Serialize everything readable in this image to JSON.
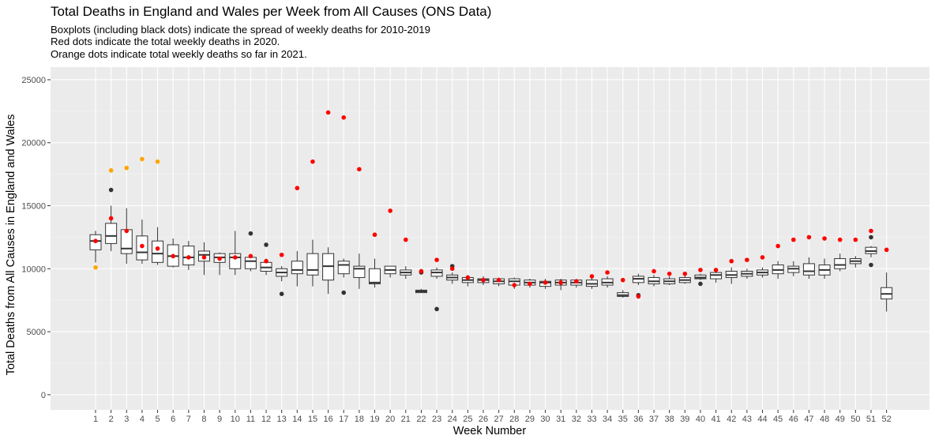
{
  "chart_data": {
    "type": "boxplot",
    "title": "Total Deaths in England and Wales per Week from All Causes (ONS Data)",
    "subtitle": [
      "Boxplots (including black dots) indicate the spread of weekly deaths for 2010-2019",
      "Red dots indicate the total weekly deaths in 2020.",
      "Orange dots indicate total weekly deaths so far in 2021."
    ],
    "xlabel": "Week Number",
    "ylabel": "Total Deaths from All Causes in England and Wales",
    "ylim": [
      -1200,
      26000
    ],
    "yticks": [
      0,
      5000,
      10000,
      15000,
      20000,
      25000
    ],
    "grid": true,
    "categories": [
      "1",
      "2",
      "3",
      "4",
      "5",
      "6",
      "7",
      "8",
      "9",
      "10",
      "11",
      "12",
      "13",
      "14",
      "15",
      "16",
      "17",
      "18",
      "19",
      "20",
      "21",
      "22",
      "23",
      "24",
      "25",
      "26",
      "27",
      "28",
      "29",
      "30",
      "31",
      "32",
      "33",
      "34",
      "35",
      "36",
      "37",
      "38",
      "39",
      "40",
      "41",
      "42",
      "43",
      "44",
      "45",
      "46",
      "47",
      "48",
      "49",
      "50",
      "51",
      "52"
    ],
    "boxes": [
      {
        "week": 1,
        "wlo": 10500,
        "q1": 11500,
        "med": 12200,
        "q3": 12700,
        "whi": 13000,
        "outliers": []
      },
      {
        "week": 2,
        "wlo": 11400,
        "q1": 12000,
        "med": 12600,
        "q3": 13600,
        "whi": 15000,
        "outliers": [
          16250
        ]
      },
      {
        "week": 3,
        "wlo": 10400,
        "q1": 11200,
        "med": 11600,
        "q3": 13100,
        "whi": 14800,
        "outliers": []
      },
      {
        "week": 4,
        "wlo": 10400,
        "q1": 10700,
        "med": 11300,
        "q3": 12600,
        "whi": 13900,
        "outliers": []
      },
      {
        "week": 5,
        "wlo": 10300,
        "q1": 10500,
        "med": 11200,
        "q3": 12200,
        "whi": 13300,
        "outliers": []
      },
      {
        "week": 6,
        "wlo": 10100,
        "q1": 10200,
        "med": 11000,
        "q3": 11900,
        "whi": 12400,
        "outliers": []
      },
      {
        "week": 7,
        "wlo": 9900,
        "q1": 10300,
        "med": 10900,
        "q3": 11800,
        "whi": 12200,
        "outliers": []
      },
      {
        "week": 8,
        "wlo": 9500,
        "q1": 10600,
        "med": 11100,
        "q3": 11400,
        "whi": 12100,
        "outliers": []
      },
      {
        "week": 9,
        "wlo": 9500,
        "q1": 10500,
        "med": 10900,
        "q3": 11200,
        "whi": 11300,
        "outliers": []
      },
      {
        "week": 10,
        "wlo": 9500,
        "q1": 10000,
        "med": 10900,
        "q3": 11200,
        "whi": 13000,
        "outliers": []
      },
      {
        "week": 11,
        "wlo": 9800,
        "q1": 10000,
        "med": 10600,
        "q3": 10900,
        "whi": 11100,
        "outliers": [
          12800
        ]
      },
      {
        "week": 12,
        "wlo": 9500,
        "q1": 9800,
        "med": 10100,
        "q3": 10500,
        "whi": 10800,
        "outliers": [
          11900
        ]
      },
      {
        "week": 13,
        "wlo": 9000,
        "q1": 9400,
        "med": 9700,
        "q3": 10000,
        "whi": 10200,
        "outliers": [
          8000
        ]
      },
      {
        "week": 14,
        "wlo": 8600,
        "q1": 9600,
        "med": 9900,
        "q3": 10600,
        "whi": 11400,
        "outliers": []
      },
      {
        "week": 15,
        "wlo": 8600,
        "q1": 9500,
        "med": 9900,
        "q3": 11200,
        "whi": 12300,
        "outliers": []
      },
      {
        "week": 16,
        "wlo": 8000,
        "q1": 9100,
        "med": 10200,
        "q3": 11200,
        "whi": 11700,
        "outliers": []
      },
      {
        "week": 17,
        "wlo": 9300,
        "q1": 9600,
        "med": 10300,
        "q3": 10600,
        "whi": 10800,
        "outliers": [
          8100
        ]
      },
      {
        "week": 18,
        "wlo": 8400,
        "q1": 9300,
        "med": 10000,
        "q3": 10200,
        "whi": 11200,
        "outliers": []
      },
      {
        "week": 19,
        "wlo": 8500,
        "q1": 8800,
        "med": 8900,
        "q3": 10000,
        "whi": 10800,
        "outliers": []
      },
      {
        "week": 20,
        "wlo": 9300,
        "q1": 9600,
        "med": 9900,
        "q3": 10200,
        "whi": 10200,
        "outliers": []
      },
      {
        "week": 21,
        "wlo": 9200,
        "q1": 9500,
        "med": 9700,
        "q3": 9900,
        "whi": 10200,
        "outliers": []
      },
      {
        "week": 22,
        "wlo": 8100,
        "q1": 8100,
        "med": 8200,
        "q3": 8300,
        "whi": 8400,
        "outliers": [
          9700
        ]
      },
      {
        "week": 23,
        "wlo": 9200,
        "q1": 9400,
        "med": 9700,
        "q3": 9900,
        "whi": 10100,
        "outliers": [
          6800
        ]
      },
      {
        "week": 24,
        "wlo": 8800,
        "q1": 9100,
        "med": 9300,
        "q3": 9500,
        "whi": 9700,
        "outliers": [
          10200
        ]
      },
      {
        "week": 25,
        "wlo": 8600,
        "q1": 8900,
        "med": 9100,
        "q3": 9300,
        "whi": 9500,
        "outliers": []
      },
      {
        "week": 26,
        "wlo": 8700,
        "q1": 8900,
        "med": 9100,
        "q3": 9200,
        "whi": 9400,
        "outliers": []
      },
      {
        "week": 27,
        "wlo": 8600,
        "q1": 8800,
        "med": 9000,
        "q3": 9200,
        "whi": 9300,
        "outliers": []
      },
      {
        "week": 28,
        "wlo": 8400,
        "q1": 8700,
        "med": 9000,
        "q3": 9200,
        "whi": 9300,
        "outliers": []
      },
      {
        "week": 29,
        "wlo": 8500,
        "q1": 8700,
        "med": 8900,
        "q3": 9100,
        "whi": 9200,
        "outliers": []
      },
      {
        "week": 30,
        "wlo": 8400,
        "q1": 8600,
        "med": 8900,
        "q3": 9000,
        "whi": 9200,
        "outliers": []
      },
      {
        "week": 31,
        "wlo": 8300,
        "q1": 8700,
        "med": 8900,
        "q3": 9100,
        "whi": 9200,
        "outliers": []
      },
      {
        "week": 32,
        "wlo": 8500,
        "q1": 8700,
        "med": 8900,
        "q3": 9100,
        "whi": 9200,
        "outliers": []
      },
      {
        "week": 33,
        "wlo": 8400,
        "q1": 8600,
        "med": 8800,
        "q3": 9100,
        "whi": 9300,
        "outliers": []
      },
      {
        "week": 34,
        "wlo": 8500,
        "q1": 8700,
        "med": 8900,
        "q3": 9200,
        "whi": 9400,
        "outliers": []
      },
      {
        "week": 35,
        "wlo": 7700,
        "q1": 7800,
        "med": 7900,
        "q3": 8100,
        "whi": 8300,
        "outliers": []
      },
      {
        "week": 36,
        "wlo": 8700,
        "q1": 8900,
        "med": 9200,
        "q3": 9400,
        "whi": 9600,
        "outliers": [
          7900
        ]
      },
      {
        "week": 37,
        "wlo": 8600,
        "q1": 8800,
        "med": 9000,
        "q3": 9300,
        "whi": 9500,
        "outliers": []
      },
      {
        "week": 38,
        "wlo": 8700,
        "q1": 8800,
        "med": 9000,
        "q3": 9200,
        "whi": 9400,
        "outliers": []
      },
      {
        "week": 39,
        "wlo": 8800,
        "q1": 8900,
        "med": 9100,
        "q3": 9300,
        "whi": 9500,
        "outliers": []
      },
      {
        "week": 40,
        "wlo": 9100,
        "q1": 9200,
        "med": 9300,
        "q3": 9500,
        "whi": 9600,
        "outliers": [
          8800
        ]
      },
      {
        "week": 41,
        "wlo": 8900,
        "q1": 9200,
        "med": 9500,
        "q3": 9700,
        "whi": 10000,
        "outliers": []
      },
      {
        "week": 42,
        "wlo": 8800,
        "q1": 9300,
        "med": 9500,
        "q3": 9800,
        "whi": 10100,
        "outliers": []
      },
      {
        "week": 43,
        "wlo": 9200,
        "q1": 9400,
        "med": 9600,
        "q3": 9800,
        "whi": 10000,
        "outliers": []
      },
      {
        "week": 44,
        "wlo": 9300,
        "q1": 9500,
        "med": 9700,
        "q3": 9900,
        "whi": 10100,
        "outliers": []
      },
      {
        "week": 45,
        "wlo": 9200,
        "q1": 9600,
        "med": 9900,
        "q3": 10300,
        "whi": 10600,
        "outliers": []
      },
      {
        "week": 46,
        "wlo": 9400,
        "q1": 9700,
        "med": 10000,
        "q3": 10200,
        "whi": 10600,
        "outliers": []
      },
      {
        "week": 47,
        "wlo": 9200,
        "q1": 9500,
        "med": 9800,
        "q3": 10400,
        "whi": 10900,
        "outliers": []
      },
      {
        "week": 48,
        "wlo": 9200,
        "q1": 9500,
        "med": 9900,
        "q3": 10300,
        "whi": 10800,
        "outliers": []
      },
      {
        "week": 49,
        "wlo": 9800,
        "q1": 10000,
        "med": 10300,
        "q3": 10800,
        "whi": 11200,
        "outliers": []
      },
      {
        "week": 50,
        "wlo": 10100,
        "q1": 10400,
        "med": 10600,
        "q3": 10800,
        "whi": 11000,
        "outliers": []
      },
      {
        "week": 51,
        "wlo": 10900,
        "q1": 11200,
        "med": 11400,
        "q3": 11700,
        "whi": 11800,
        "outliers": [
          12500,
          10300
        ]
      },
      {
        "week": 52,
        "wlo": 6600,
        "q1": 7600,
        "med": 8000,
        "q3": 8500,
        "whi": 9700,
        "outliers": []
      }
    ],
    "series": [
      {
        "name": "2020",
        "color": "#ff0000",
        "values": [
          12200,
          14000,
          13000,
          11800,
          11600,
          11000,
          10900,
          10900,
          10800,
          10900,
          11000,
          10600,
          11100,
          16400,
          18500,
          22400,
          22000,
          17900,
          12700,
          14600,
          12300,
          9800,
          10700,
          10000,
          9300,
          9100,
          9100,
          8700,
          8800,
          8900,
          8900,
          9000,
          9400,
          9700,
          9100,
          7800,
          9800,
          9600,
          9600,
          9900,
          9900,
          10600,
          10700,
          10900,
          11800,
          12300,
          12500,
          12400,
          12300,
          12300,
          13000,
          11500
        ]
      },
      {
        "name": "2021",
        "color": "#ffa500",
        "values": [
          10100,
          17800,
          18000,
          18700,
          18500
        ]
      }
    ]
  }
}
